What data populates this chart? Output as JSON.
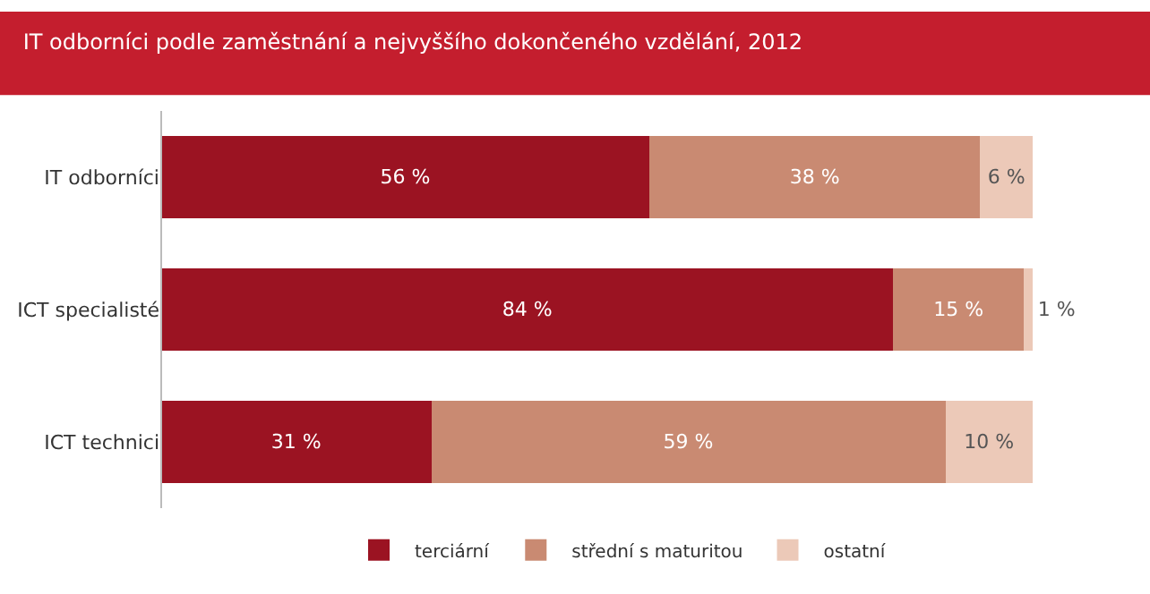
{
  "chart_data": {
    "type": "bar",
    "orientation": "horizontal",
    "stacked": true,
    "title": "IT odborníci podle zaměstnání a nejvyššího dokončeného vzdělání, 2012",
    "categories": [
      "IT odborníci",
      "ICT specialisté",
      "ICT technici"
    ],
    "series": [
      {
        "name": "terciární",
        "color": "#9b1322",
        "values": [
          56,
          84,
          31
        ],
        "value_labels": [
          "56 %",
          "84 %",
          "31 %"
        ]
      },
      {
        "name": "střední s maturitou",
        "color": "#c98a72",
        "values": [
          38,
          15,
          59
        ],
        "value_labels": [
          "38 %",
          "15 %",
          "59 %"
        ]
      },
      {
        "name": "ostatní",
        "color": "#ecc9b8",
        "values": [
          6,
          1,
          10
        ],
        "value_labels": [
          "6 %",
          "1 %",
          "10 %"
        ]
      }
    ],
    "legend": "bottom",
    "tick_labels": "y"
  }
}
